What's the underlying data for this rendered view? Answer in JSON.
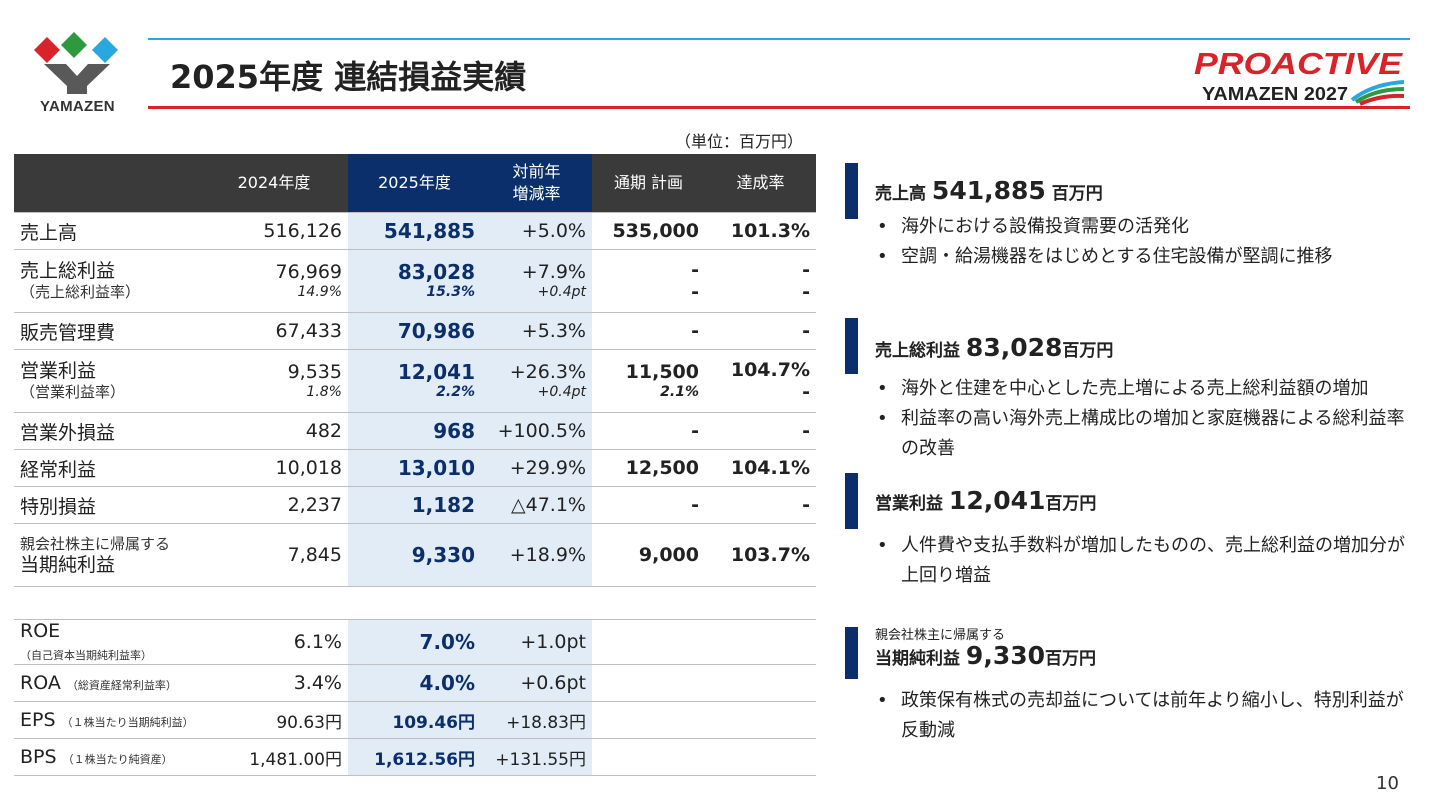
{
  "header": {
    "title": "2025年度 連結損益実績",
    "company_logo_text": "YAMAZEN",
    "brand_logo_text": "PROACTIVE",
    "brand_logo_sub": "YAMAZEN 2027",
    "unit": "（単位：百万円）"
  },
  "colors": {
    "navy": "#0b2f6b",
    "dark_header": "#3a3a3a",
    "highlight_col": "#e2ecf6",
    "red_line": "#d8232a",
    "blue_line": "#29a8e0"
  },
  "table": {
    "headers": [
      "",
      "2024年度",
      "2025年度",
      "対前年",
      "増減率",
      "通期 計画",
      "達成率"
    ],
    "rows": [
      {
        "label": "売上高",
        "fy24": "516,126",
        "fy25": "541,885",
        "yoy": "+5.0%",
        "plan": "535,000",
        "rate": "101.3%"
      },
      {
        "label": "売上総利益",
        "label_sub": "（売上総利益率）",
        "fy24": "76,969",
        "fy24_sub": "14.9%",
        "fy25": "83,028",
        "fy25_sub": "15.3%",
        "yoy": "+7.9%",
        "yoy_sub": "+0.4pt",
        "plan": "-",
        "plan_sub": "-",
        "rate": "-",
        "rate_sub": "-"
      },
      {
        "label": "販売管理費",
        "fy24": "67,433",
        "fy25": "70,986",
        "yoy": "+5.3%",
        "plan": "-",
        "rate": "-"
      },
      {
        "label": "営業利益",
        "label_sub": "（営業利益率）",
        "fy24": "9,535",
        "fy24_sub": "1.8%",
        "fy25": "12,041",
        "fy25_sub": "2.2%",
        "yoy": "+26.3%",
        "yoy_sub": "+0.4pt",
        "plan": "11,500",
        "plan_sub": "2.1%",
        "rate": "104.7%",
        "rate_sub": "-"
      },
      {
        "label": "営業外損益",
        "fy24": "482",
        "fy25": "968",
        "yoy": "+100.5%",
        "plan": "-",
        "rate": "-"
      },
      {
        "label": "経常利益",
        "fy24": "10,018",
        "fy25": "13,010",
        "yoy": "+29.9%",
        "plan": "12,500",
        "rate": "104.1%"
      },
      {
        "label": "特別損益",
        "fy24": "2,237",
        "fy25": "1,182",
        "yoy": "△47.1%",
        "plan": "-",
        "rate": "-"
      },
      {
        "label_pre": "親会社株主に帰属する",
        "label": "当期純利益",
        "fy24": "7,845",
        "fy25": "9,330",
        "yoy": "+18.9%",
        "plan": "9,000",
        "rate": "103.7%"
      }
    ],
    "ratios": [
      {
        "label": "ROE",
        "note": "（自己資本当期純利益率）",
        "fy24": "6.1%",
        "fy25": "7.0%",
        "yoy": "+1.0pt"
      },
      {
        "label": "ROA",
        "note": "（総資産経常利益率）",
        "fy24": "3.4%",
        "fy25": "4.0%",
        "yoy": "+0.6pt"
      },
      {
        "label": "EPS",
        "note": "（１株当たり当期純利益）",
        "fy24": "90.63円",
        "fy25": "109.46円",
        "yoy": "+18.83円"
      },
      {
        "label": "BPS",
        "note": "（１株当たり純資産）",
        "fy24": "1,481.00円",
        "fy25": "1,612.56円",
        "yoy": "+131.55円"
      }
    ]
  },
  "sections": [
    {
      "title": "売上高",
      "value": "541,885",
      "unit": "百万円",
      "bullets": [
        "海外における設備投資需要の活発化",
        "空調・給湯機器をはじめとする住宅設備が堅調に推移"
      ]
    },
    {
      "title": "売上総利益",
      "value": "83,028",
      "unit": "百万円",
      "bullets": [
        "海外と住建を中心とした売上増による売上総利益額の増加",
        "利益率の高い海外売上構成比の増加と家庭機器による総利益率の改善"
      ]
    },
    {
      "title": "営業利益",
      "value": "12,041",
      "unit": "百万円",
      "bullets": [
        "人件費や支払手数料が増加したものの、売上総利益の増加分が上回り増益"
      ]
    },
    {
      "pre": "親会社株主に帰属する",
      "title": "当期純利益",
      "value": "9,330",
      "unit": "百万円",
      "bullets": [
        "政策保有株式の売却益については前年より縮小し、特別利益が反動減"
      ]
    }
  ],
  "page_number": "10"
}
